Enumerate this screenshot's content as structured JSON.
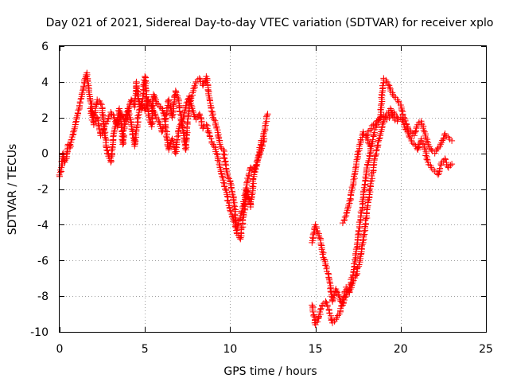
{
  "chart_data": {
    "type": "scatter",
    "title": "Day 021 of 2021, Sidereal Day-to-day VTEC variation (SDTVAR) for receiver xplo",
    "xlabel": "GPS time / hours",
    "ylabel": "SDTVAR / TECUs",
    "xlim": [
      0,
      25
    ],
    "ylim": [
      -10,
      6
    ],
    "xticks": [
      0,
      5,
      10,
      15,
      20,
      25
    ],
    "yticks": [
      -10,
      -8,
      -6,
      -4,
      -2,
      0,
      2,
      4,
      6
    ],
    "grid": true,
    "marker": "+",
    "series": [
      {
        "name": "SDTVAR",
        "color": "#ff0000",
        "segments": [
          {
            "x": [
              0.0,
              0.1,
              0.2,
              0.3,
              0.4,
              0.5,
              0.6,
              0.8,
              1.0,
              1.2,
              1.4,
              1.5,
              1.6,
              1.7,
              1.8,
              1.9,
              2.0,
              2.2,
              2.4,
              2.5,
              2.6,
              2.7,
              2.8,
              3.0,
              3.2,
              3.4,
              3.5,
              3.6,
              3.7,
              3.8,
              4.0,
              4.2,
              4.4,
              4.5,
              4.6,
              4.8,
              5.0,
              5.2,
              5.4,
              5.5,
              5.7,
              6.0,
              6.2,
              6.4,
              6.6,
              6.8,
              7.0,
              7.2,
              7.4,
              7.6,
              7.8,
              8.0,
              8.2,
              8.4,
              8.6,
              8.8,
              9.0,
              9.2,
              9.4,
              9.6,
              9.8,
              10.0,
              10.2,
              10.4,
              10.6,
              10.8,
              11.0,
              11.2,
              11.4,
              11.6,
              11.8,
              12.0,
              12.2
            ],
            "y": [
              -1.3,
              -0.8,
              0.0,
              -0.5,
              -0.3,
              0.5,
              0.3,
              1.2,
              2.0,
              2.8,
              3.6,
              4.2,
              4.5,
              3.8,
              3.0,
              2.5,
              2.0,
              3.0,
              2.8,
              2.5,
              1.5,
              0.8,
              0.0,
              -0.5,
              1.2,
              2.0,
              2.5,
              1.8,
              0.5,
              1.5,
              2.2,
              3.0,
              2.6,
              4.0,
              3.2,
              2.5,
              4.3,
              2.2,
              1.5,
              3.3,
              2.8,
              2.5,
              1.8,
              3.0,
              2.0,
              3.5,
              2.8,
              1.5,
              0.2,
              2.8,
              3.4,
              4.0,
              4.2,
              3.8,
              4.3,
              3.0,
              2.0,
              1.5,
              0.5,
              0.2,
              -1.0,
              -1.6,
              -2.5,
              -4.5,
              -4.8,
              -3.5,
              -2.0,
              -3.0,
              -1.2,
              -0.5,
              0.5,
              1.2,
              2.2
            ]
          },
          {
            "x": [
              1.8,
              2.0,
              2.2,
              2.4,
              2.6,
              2.8,
              3.0,
              3.2,
              3.4,
              3.6,
              3.8,
              4.0,
              4.2,
              4.4,
              4.6,
              4.8,
              5.0,
              5.2,
              5.4,
              5.6,
              5.8,
              6.0,
              6.2,
              6.4,
              6.6,
              6.8,
              7.0,
              7.2,
              7.4,
              7.6,
              7.8,
              8.0,
              8.2,
              8.4,
              8.6,
              8.8,
              9.0,
              9.2,
              9.4,
              9.6,
              9.8,
              10.0,
              10.2,
              10.4,
              10.6,
              10.8,
              11.0,
              11.2,
              11.4,
              11.6,
              11.8,
              12.0
            ],
            "y": [
              2.5,
              1.6,
              2.0,
              1.0,
              1.4,
              1.8,
              2.3,
              2.0,
              1.5,
              2.2,
              1.8,
              2.5,
              1.6,
              0.4,
              2.0,
              2.8,
              2.4,
              3.0,
              2.6,
              2.2,
              1.8,
              1.2,
              1.6,
              0.2,
              0.8,
              0.0,
              1.4,
              1.8,
              2.6,
              3.2,
              2.4,
              1.9,
              2.2,
              1.4,
              1.6,
              1.0,
              0.5,
              0.0,
              -0.8,
              -1.5,
              -2.3,
              -3.2,
              -3.8,
              -4.3,
              -3.5,
              -2.8,
              -1.6,
              -0.8,
              -1.0,
              -0.4,
              0.2,
              0.8
            ]
          },
          {
            "x": [
              14.8,
              15.0,
              15.2,
              15.4,
              15.6,
              15.8,
              16.0,
              16.2,
              16.4,
              16.6,
              16.8,
              17.0,
              17.2,
              17.4,
              17.6,
              17.8,
              18.0,
              18.2,
              18.4,
              18.6,
              18.8,
              19.0,
              19.2,
              19.4,
              19.6,
              19.8,
              20.0,
              20.2,
              20.4,
              20.6,
              20.8,
              21.0,
              21.2,
              21.4,
              21.6,
              21.8,
              22.0,
              22.2,
              22.4,
              22.6,
              22.8,
              23.0
            ],
            "y": [
              -8.5,
              -9.6,
              -9.2,
              -8.5,
              -8.3,
              -8.8,
              -9.5,
              -9.3,
              -9.0,
              -8.2,
              -7.5,
              -7.8,
              -7.2,
              -6.8,
              -6.0,
              -5.0,
              -3.5,
              -2.0,
              -0.8,
              0.2,
              1.0,
              1.8,
              2.2,
              2.5,
              2.0,
              1.8,
              2.0,
              1.6,
              1.2,
              0.8,
              0.5,
              0.2,
              0.8,
              0.3,
              -0.5,
              -0.8,
              -1.0,
              -1.2,
              -0.5,
              -0.3,
              -0.8,
              -0.6
            ]
          },
          {
            "x": [
              14.8,
              15.0,
              15.2,
              15.4,
              15.6,
              15.8,
              16.0,
              16.2,
              16.4,
              16.6,
              16.8,
              17.0,
              17.2,
              17.4,
              17.6,
              17.8,
              18.0,
              18.2,
              18.4,
              18.6,
              18.8,
              19.0,
              19.2,
              19.4,
              19.6,
              19.8,
              20.0,
              20.2,
              20.4,
              20.6,
              20.8,
              21.0,
              21.2,
              21.4,
              21.6,
              21.8,
              22.0,
              22.2,
              22.4,
              22.6,
              22.8,
              23.0
            ],
            "y": [
              -5.0,
              -4.0,
              -4.5,
              -5.5,
              -6.2,
              -7.0,
              -8.3,
              -7.6,
              -8.0,
              -8.5,
              -8.0,
              -7.5,
              -6.8,
              -5.5,
              -4.0,
              -2.5,
              -1.0,
              0.0,
              1.0,
              1.6,
              2.0,
              4.2,
              4.0,
              3.6,
              3.2,
              3.0,
              2.7,
              2.0,
              1.5,
              1.2,
              1.0,
              1.6,
              1.8,
              1.2,
              0.6,
              0.2,
              0.0,
              0.3,
              0.6,
              1.1,
              0.9,
              0.7
            ]
          },
          {
            "x": [
              16.6,
              16.8,
              17.0,
              17.2,
              17.4,
              17.6,
              17.8,
              18.0,
              18.2
            ],
            "y": [
              -3.9,
              -3.5,
              -2.8,
              -1.8,
              -0.6,
              0.5,
              1.2,
              0.9,
              0.4
            ]
          },
          {
            "x": [
              18.0,
              18.2,
              18.4,
              18.6,
              18.8,
              19.0,
              19.2,
              19.4,
              19.6,
              19.8
            ],
            "y": [
              1.0,
              1.3,
              1.6,
              1.8,
              2.0,
              2.1,
              1.9,
              2.1,
              2.3,
              2.0
            ]
          }
        ]
      }
    ]
  }
}
